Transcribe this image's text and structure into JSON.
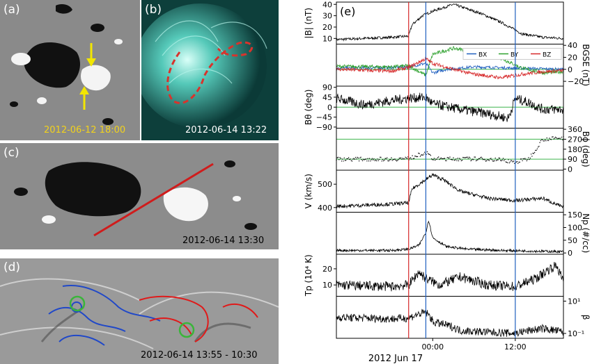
{
  "panels": {
    "a": {
      "label": "(a)",
      "timestamp": "2012-06-12 18:00",
      "timestamp_color": "#f2d21c",
      "arrow_color": "#f2e600"
    },
    "b": {
      "label": "(b)",
      "timestamp": "2012-06-14 13:22",
      "tint_color": "#2fb7a8",
      "outline_color": "#d8332c"
    },
    "c": {
      "label": "(c)",
      "timestamp": "2012-06-14 13:30",
      "line_color": "#d01c1c"
    },
    "d": {
      "label": "(d)",
      "timestamp": "2012-06-14 13:55 - 10:30",
      "contour_colors": [
        "#2048c8",
        "#e01a1a"
      ],
      "circle_color": "#3ab53a"
    }
  },
  "chart_data": {
    "type": "line",
    "panel_label": "(e)",
    "xlabel": "2012 Jun 17",
    "xticks": [
      "00:00",
      "12:00"
    ],
    "x_range_hours": [
      -14,
      19
    ],
    "event_lines": [
      {
        "hour": -3.5,
        "color": "#d62728"
      },
      {
        "hour": -1.0,
        "color": "#1f5fbf"
      },
      {
        "hour": 12.0,
        "color": "#1f5fbf"
      }
    ],
    "legend_position": "top-right",
    "subplots": [
      {
        "id": "B",
        "ylabel": "|B| (nT)",
        "ylabel_side": "left",
        "yticks": [
          "10",
          "20",
          "30",
          "40"
        ],
        "ylim": [
          5,
          42
        ],
        "grid": false,
        "series": [
          {
            "color": "#000000",
            "knots": [
              [
                -14,
                9
              ],
              [
                -10,
                10
              ],
              [
                -6,
                11
              ],
              [
                -3.5,
                12
              ],
              [
                -3,
                22
              ],
              [
                -1.5,
                30
              ],
              [
                0,
                34
              ],
              [
                3,
                40
              ],
              [
                7,
                32
              ],
              [
                10,
                24
              ],
              [
                13,
                14
              ],
              [
                16,
                11
              ],
              [
                19,
                10
              ]
            ],
            "noise": 1.2
          }
        ]
      },
      {
        "id": "Bgse",
        "ylabel": "B_GSE (nT)",
        "ylabel_side": "right",
        "yticks": [
          "−20",
          "0",
          "20",
          "40"
        ],
        "ylim": [
          -28,
          42
        ],
        "ref_line": 0,
        "legend": [
          "B_X",
          "B_Y",
          "B_Z"
        ],
        "series": [
          {
            "name": "B_X",
            "color": "#1f5fbf",
            "knots": [
              [
                -14,
                2
              ],
              [
                -6,
                3
              ],
              [
                -3.5,
                4
              ],
              [
                -1,
                10
              ],
              [
                0,
                -6
              ],
              [
                2,
                0
              ],
              [
                6,
                4
              ],
              [
                12,
                2
              ],
              [
                19,
                0
              ]
            ],
            "noise": 2.5
          },
          {
            "name": "B_Y",
            "color": "#2ca02c",
            "knots": [
              [
                -14,
                5
              ],
              [
                -6,
                4
              ],
              [
                -3.5,
                6
              ],
              [
                -1,
                -10
              ],
              [
                0,
                25
              ],
              [
                3,
                35
              ],
              [
                6,
                30
              ],
              [
                10,
                18
              ],
              [
                13,
                2
              ],
              [
                16,
                -6
              ],
              [
                19,
                -4
              ]
            ],
            "noise": 3
          },
          {
            "name": "B_Z",
            "color": "#d62728",
            "knots": [
              [
                -14,
                0
              ],
              [
                -6,
                -3
              ],
              [
                -3.5,
                3
              ],
              [
                -1,
                18
              ],
              [
                0,
                10
              ],
              [
                3,
                0
              ],
              [
                6,
                -8
              ],
              [
                10,
                -14
              ],
              [
                13,
                -8
              ],
              [
                16,
                -4
              ],
              [
                19,
                -2
              ]
            ],
            "noise": 3
          }
        ]
      },
      {
        "id": "Btheta",
        "ylabel": "B_θ (deg)",
        "ylabel_side": "left",
        "yticks": [
          "−90",
          "−45",
          "0",
          "45",
          "90"
        ],
        "ylim": [
          -95,
          95
        ],
        "ref_line": 0,
        "series": [
          {
            "color": "#000000",
            "knots": [
              [
                -14,
                40
              ],
              [
                -10,
                10
              ],
              [
                -6,
                30
              ],
              [
                -3.5,
                40
              ],
              [
                -1,
                45
              ],
              [
                0,
                15
              ],
              [
                4,
                -10
              ],
              [
                8,
                -30
              ],
              [
                11,
                -50
              ],
              [
                12,
                40
              ],
              [
                14,
                20
              ],
              [
                16,
                -10
              ],
              [
                19,
                -10
              ]
            ],
            "noise": 22
          }
        ]
      },
      {
        "id": "Bphi",
        "ylabel": "B_ϕ (deg)",
        "ylabel_side": "right",
        "yticks": [
          "0",
          "90",
          "180",
          "270",
          "360"
        ],
        "ylim": [
          -10,
          370
        ],
        "ref_lines": [
          90,
          270
        ],
        "scatter": true,
        "series": [
          {
            "color": "#000000",
            "knots": [
              [
                -14,
                90
              ],
              [
                -6,
                90
              ],
              [
                -3.5,
                95
              ],
              [
                -1,
                150
              ],
              [
                0,
                92
              ],
              [
                6,
                92
              ],
              [
                10,
                85
              ],
              [
                12,
                60
              ],
              [
                14,
                95
              ],
              [
                16,
                270
              ],
              [
                19,
                280
              ]
            ],
            "noise": 18
          }
        ]
      },
      {
        "id": "V",
        "ylabel": "V (km/s)",
        "ylabel_side": "left",
        "yticks": [
          "400",
          "500"
        ],
        "ylim": [
          380,
          560
        ],
        "series": [
          {
            "color": "#000000",
            "knots": [
              [
                -14,
                405
              ],
              [
                -10,
                410
              ],
              [
                -6,
                415
              ],
              [
                -3.5,
                420
              ],
              [
                -3,
                480
              ],
              [
                -1,
                520
              ],
              [
                0,
                540
              ],
              [
                1.5,
                520
              ],
              [
                4,
                470
              ],
              [
                8,
                440
              ],
              [
                12,
                430
              ],
              [
                16,
                440
              ],
              [
                19,
                400
              ]
            ],
            "noise": 8
          }
        ]
      },
      {
        "id": "Np",
        "ylabel": "N_p (#/cc)",
        "ylabel_side": "right",
        "yticks": [
          "0",
          "50",
          "100",
          "150"
        ],
        "ylim": [
          -5,
          160
        ],
        "series": [
          {
            "color": "#000000",
            "knots": [
              [
                -14,
                10
              ],
              [
                -6,
                10
              ],
              [
                -3.5,
                15
              ],
              [
                -2,
                30
              ],
              [
                -1,
                80
              ],
              [
                -0.6,
                130
              ],
              [
                0,
                60
              ],
              [
                2,
                25
              ],
              [
                5,
                15
              ],
              [
                10,
                10
              ],
              [
                19,
                5
              ]
            ],
            "noise": 5
          }
        ]
      },
      {
        "id": "Tp",
        "ylabel": "T_p (10⁴ K)",
        "ylabel_side": "left",
        "yticks": [
          "10",
          "20"
        ],
        "ylim": [
          3,
          29
        ],
        "series": [
          {
            "color": "#000000",
            "knots": [
              [
                -14,
                10
              ],
              [
                -6,
                9
              ],
              [
                -3.5,
                10
              ],
              [
                -2,
                18
              ],
              [
                -1,
                14
              ],
              [
                1,
                10
              ],
              [
                4,
                15
              ],
              [
                8,
                10
              ],
              [
                12,
                9
              ],
              [
                15,
                14
              ],
              [
                17,
                20
              ],
              [
                18,
                22
              ],
              [
                19,
                12
              ]
            ],
            "noise": 3
          }
        ]
      },
      {
        "id": "beta",
        "ylabel": "β",
        "ylabel_side": "right",
        "yticks": [
          "10¹",
          "10⁻¹"
        ],
        "ylog": true,
        "ylim": [
          0.05,
          20
        ],
        "series": [
          {
            "color": "#000000",
            "knots": [
              [
                -14,
                1
              ],
              [
                -6,
                0.8
              ],
              [
                -3.5,
                0.9
              ],
              [
                -1,
                2
              ],
              [
                0,
                0.5
              ],
              [
                4,
                0.15
              ],
              [
                8,
                0.12
              ],
              [
                12,
                0.1
              ],
              [
                16,
                0.2
              ],
              [
                19,
                0.12
              ]
            ],
            "noise_log": 0.25
          }
        ]
      }
    ]
  }
}
